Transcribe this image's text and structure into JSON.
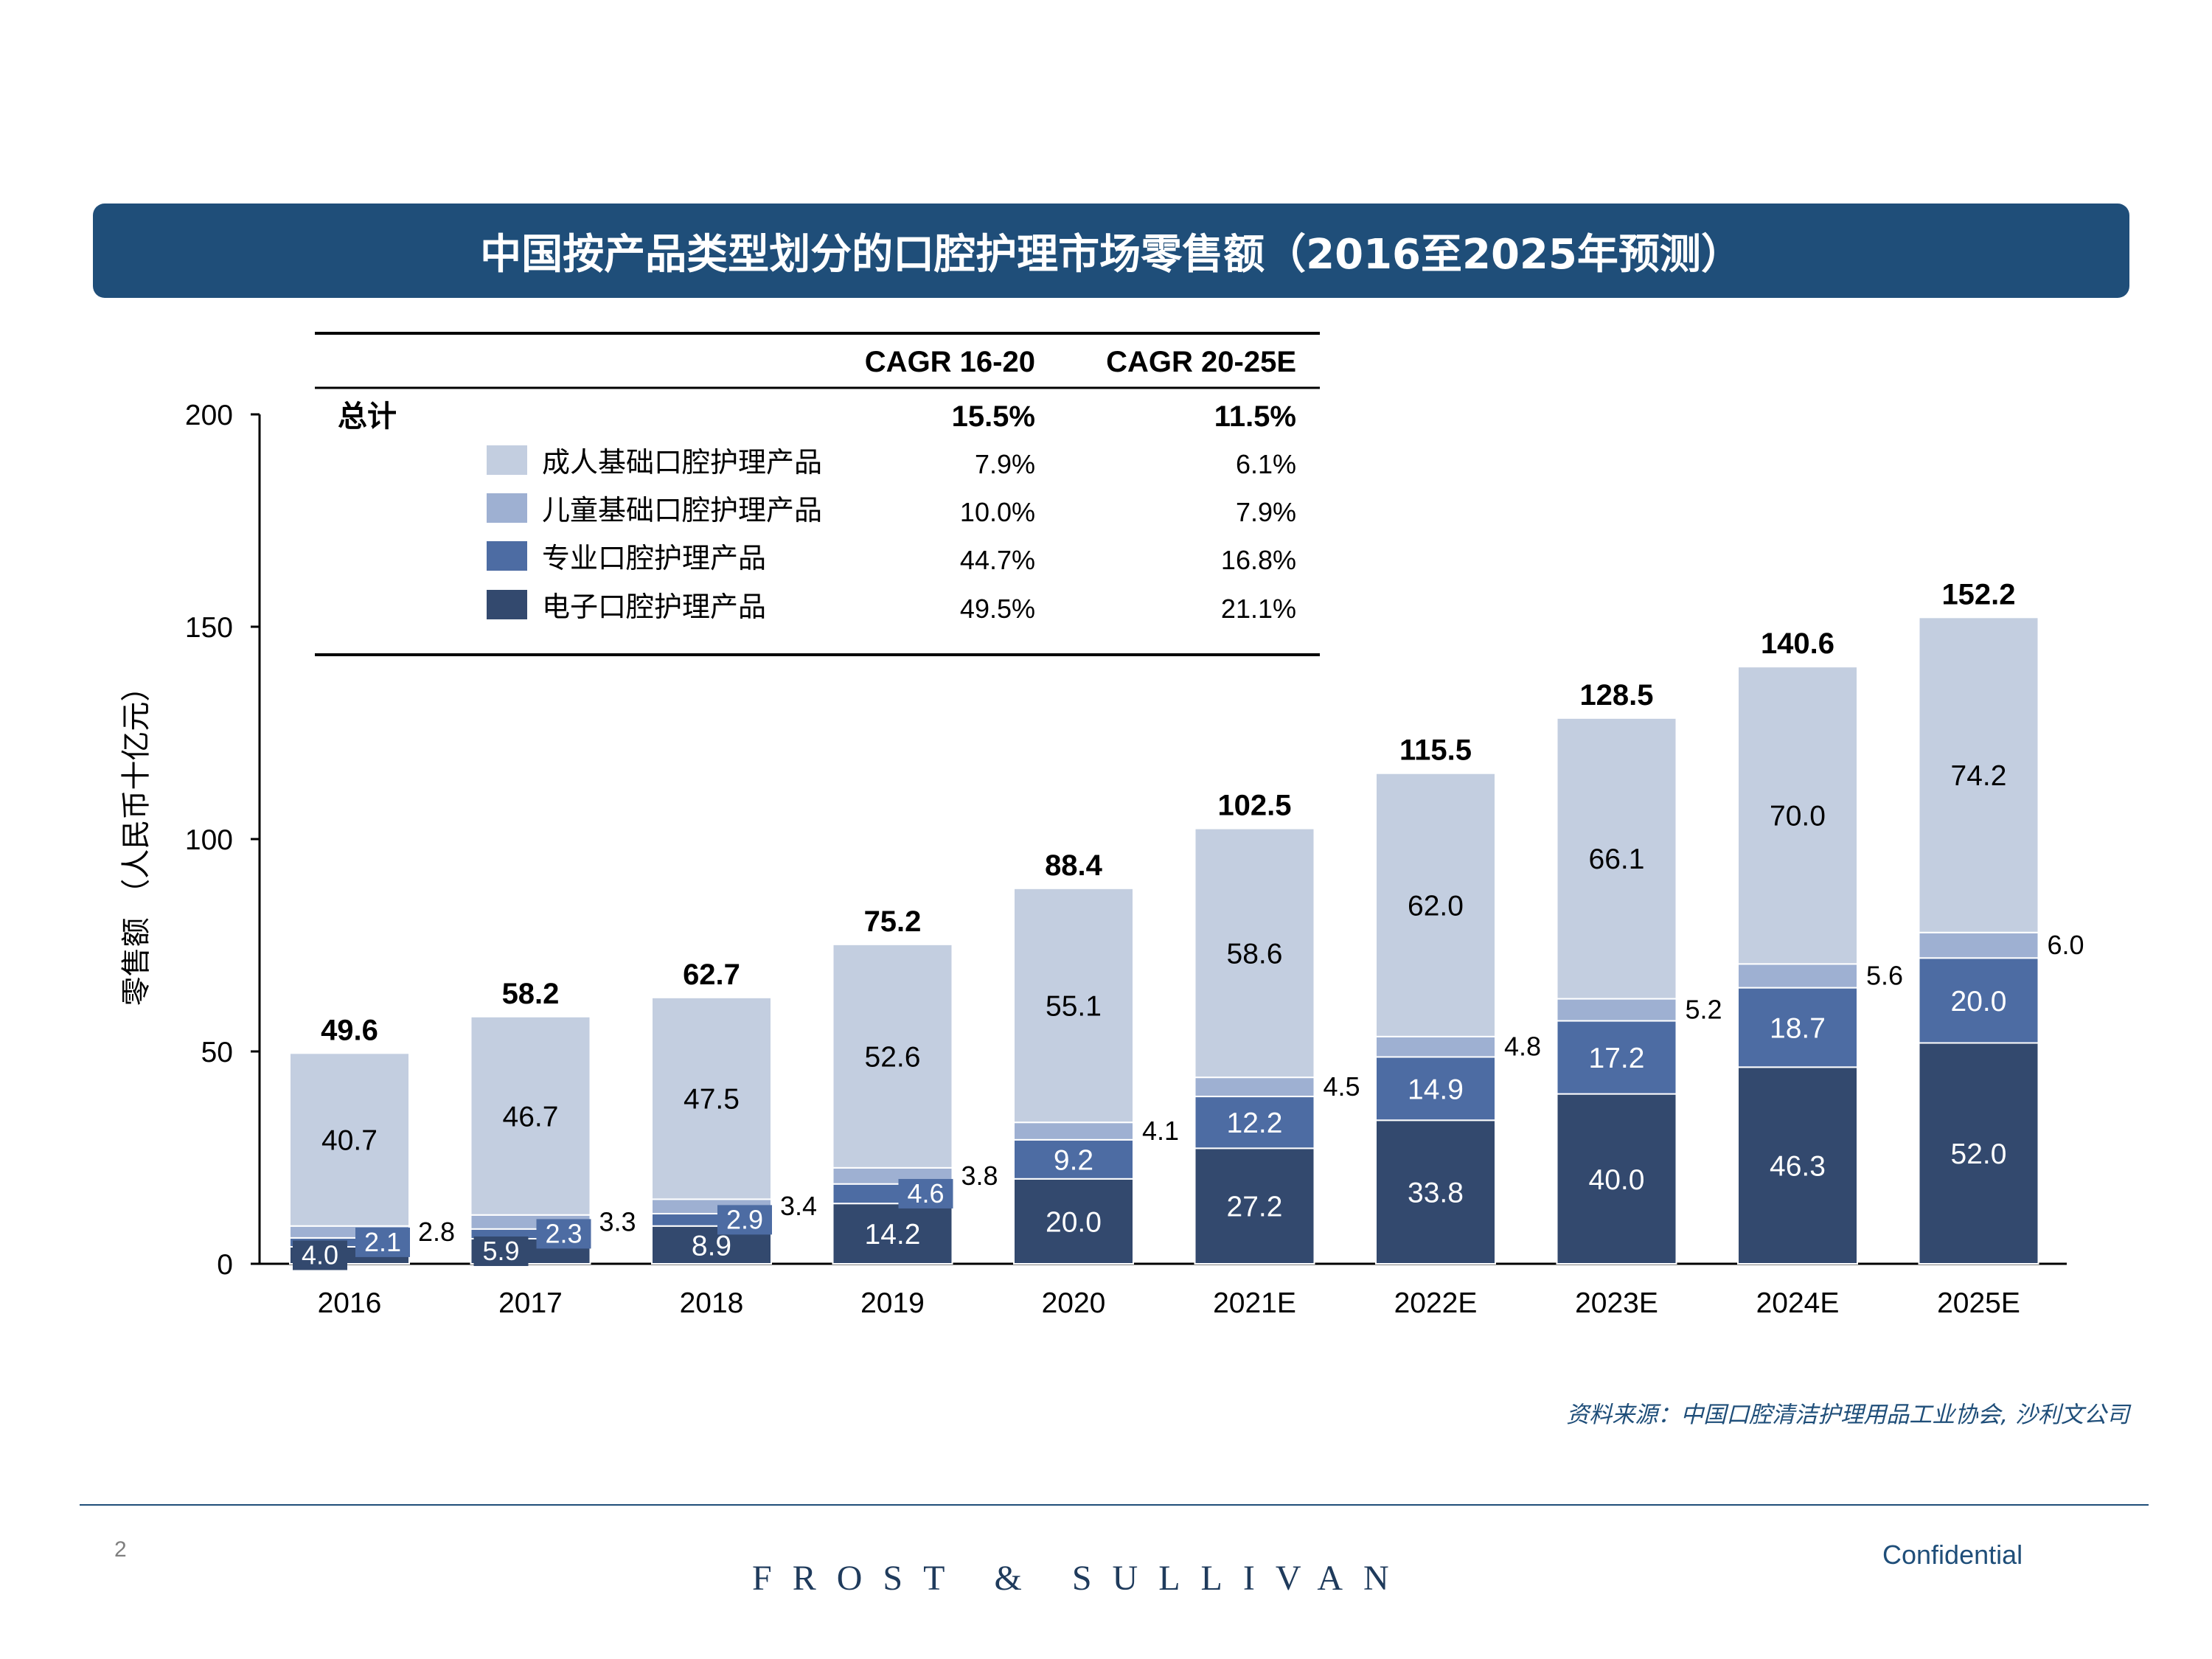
{
  "title": "中国按产品类型划分的口腔护理市场零售额（2016至2025年预测）",
  "source": "资料来源：中国口腔清洁护理用品工业协会, 沙利文公司",
  "footer": {
    "page_number": "2",
    "brand": "FROST & SULLIVAN",
    "confidential": "Confidential"
  },
  "colors": {
    "title_bar": "#1f4e79",
    "adult_basic": "#c3cee0",
    "child_basic": "#9eb0d2",
    "professional": "#4d6ca3",
    "electric": "#33496e"
  },
  "chart_data": {
    "type": "bar",
    "stacked": true,
    "ylabel": "零售额 （人民币十亿元）",
    "ylim": [
      0,
      200
    ],
    "yticks": [
      0,
      50,
      100,
      150,
      200
    ],
    "categories": [
      "2016",
      "2017",
      "2018",
      "2019",
      "2020",
      "2021E",
      "2022E",
      "2023E",
      "2024E",
      "2025E"
    ],
    "series": [
      {
        "name": "电子口腔护理产品",
        "values": [
          4.0,
          5.9,
          8.9,
          14.2,
          20.0,
          27.2,
          33.8,
          40.0,
          46.3,
          52.0
        ]
      },
      {
        "name": "专业口腔护理产品",
        "values": [
          2.1,
          2.3,
          2.9,
          4.6,
          9.2,
          12.2,
          14.9,
          17.2,
          18.7,
          20.0
        ]
      },
      {
        "name": "儿童基础口腔护理产品",
        "values": [
          2.8,
          3.3,
          3.4,
          3.8,
          4.1,
          4.5,
          4.8,
          5.2,
          5.6,
          6.0
        ]
      },
      {
        "name": "成人基础口腔护理产品",
        "values": [
          40.7,
          46.7,
          47.5,
          52.6,
          55.1,
          58.6,
          62.0,
          66.1,
          70.0,
          74.2
        ]
      }
    ],
    "totals": [
      "49.6",
      "58.2",
      "62.7",
      "75.2",
      "88.4",
      "102.5",
      "115.5",
      "128.5",
      "140.6",
      "152.2"
    ],
    "cagr_table": {
      "headers": [
        "CAGR 16-20",
        "CAGR 20-25E"
      ],
      "rows": [
        {
          "label": "总计",
          "values": [
            "15.5%",
            "11.5%"
          ]
        },
        {
          "label": "成人基础口腔护理产品",
          "values": [
            "7.9%",
            "6.1%"
          ]
        },
        {
          "label": "儿童基础口腔护理产品",
          "values": [
            "10.0%",
            "7.9%"
          ]
        },
        {
          "label": "专业口腔护理产品",
          "values": [
            "44.7%",
            "16.8%"
          ]
        },
        {
          "label": "电子口腔护理产品",
          "values": [
            "49.5%",
            "21.1%"
          ]
        }
      ]
    }
  }
}
